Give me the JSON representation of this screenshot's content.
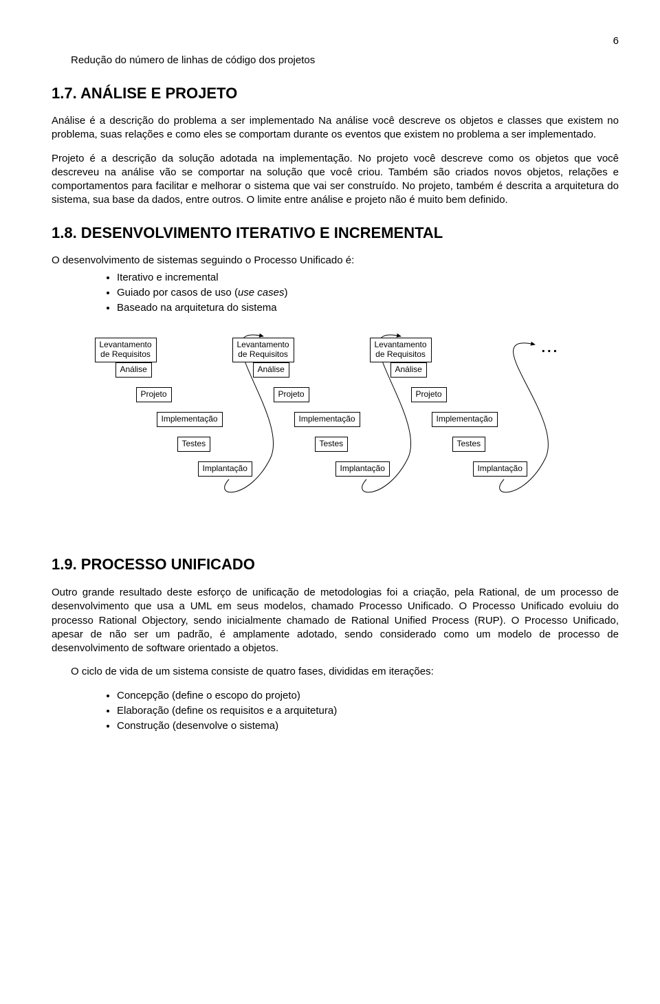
{
  "page_number": "6",
  "intro_line": "Redução do número de linhas de código dos projetos",
  "section17": {
    "heading": "1.7.   ANÁLISE E PROJETO",
    "para1": "Análise é a descrição do problema a ser implementado Na análise você descreve os objetos e classes que existem no problema, suas relações e como eles se comportam durante os eventos que existem no problema a ser implementado.",
    "para2": "Projeto é a descrição da solução adotada na implementação. No projeto você descreve como os objetos que você descreveu na análise vão se comportar na solução que você criou. Também são criados novos objetos, relações e comportamentos para facilitar e melhorar o sistema que vai ser construído. No projeto, também é descrita a arquitetura do sistema, sua base da dados, entre outros. O limite entre análise e projeto não é muito bem definido."
  },
  "section18": {
    "heading": "1.8.   DESENVOLVIMENTO ITERATIVO E INCREMENTAL",
    "intro": "O desenvolvimento de sistemas seguindo o Processo Unificado é:",
    "bullets": [
      {
        "text": "Iterativo e incremental"
      },
      {
        "text": "Guiado por casos de uso (",
        "italic": "use cases",
        "after": ")"
      },
      {
        "text": "Baseado na arquitetura do sistema"
      }
    ]
  },
  "diagram": {
    "phases": [
      "Levantamento\nde Requisitos",
      "Análise",
      "Projeto",
      "Implementação",
      "Testes",
      "Implantação"
    ],
    "iterations": 3,
    "iteration_dx": 200,
    "step_dx": 30,
    "step_dy": 36,
    "box_border": "#000000",
    "box_bg": "#ffffff",
    "arrow_stroke": "#000000",
    "arrow_width": 1,
    "font_size": 12,
    "ellipsis": "..."
  },
  "section19": {
    "heading": "1.9.   PROCESSO UNIFICADO",
    "para1": "Outro grande resultado deste esforço de unificação de metodologias foi a criação, pela Rational, de um processo de desenvolvimento que usa a UML em seus modelos, chamado Processo Unificado. O Processo Unificado evoluiu do processo Rational Objectory, sendo inicialmente chamado de Rational Unified Process (RUP). O Processo Unificado, apesar de não ser um padrão, é amplamente adotado, sendo considerado como um modelo de processo de desenvolvimento de software orientado a objetos.",
    "para2": "O ciclo de vida de um sistema consiste de quatro fases, divididas em iterações:",
    "bullets": [
      "Concepção (define o escopo do projeto)",
      "Elaboração (define os requisitos e a arquitetura)",
      "Construção (desenvolve o sistema)"
    ]
  }
}
